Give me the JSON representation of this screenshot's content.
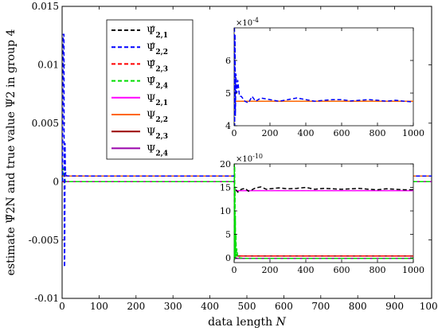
{
  "chart_data": [
    {
      "id": "main",
      "type": "line",
      "title": "",
      "xlabel": "data length",
      "xlabel_italic": "N",
      "ylabel": "estimate Ψ̂2N and true value Ψ2 in group 4",
      "xlim": [
        0,
        1000
      ],
      "ylim": [
        -0.01,
        0.015
      ],
      "xticks": [
        0,
        100,
        200,
        300,
        400,
        500,
        600,
        700,
        800,
        900,
        1000
      ],
      "xtick_labels": [
        "0",
        "100",
        "200",
        "300",
        "400",
        "500",
        "600",
        "700",
        "800",
        "900",
        "1000"
      ],
      "yticks": [
        -0.01,
        -0.005,
        0,
        0.005,
        0.01,
        0.015
      ],
      "ytick_labels": [
        "-0.01",
        "-0.005",
        "0",
        "0.005",
        "0.01",
        "0.015"
      ],
      "grid": false,
      "legend_position": "top-left",
      "series": [
        {
          "name": "Ψ̂2,1",
          "name_base": "Ψ̂",
          "name_sub": "2,1",
          "color": "#000000",
          "dash": "dashed",
          "x": [
            1,
            5,
            10,
            20,
            50,
            100,
            1000
          ],
          "y": [
            0.0,
            0.0,
            0.0,
            0.0,
            0.0,
            0.0,
            0.0
          ]
        },
        {
          "name": "Ψ̂2,2",
          "name_base": "Ψ̂",
          "name_sub": "2,2",
          "color": "#0000ff",
          "dash": "dashed",
          "x": [
            1,
            3,
            5,
            6,
            7,
            8,
            9,
            10,
            12,
            15,
            20,
            50,
            100,
            1000
          ],
          "y": [
            0.0,
            0.0126,
            0.0126,
            -0.0073,
            -0.0073,
            0.0033,
            0.0006,
            0.0008,
            0.0005,
            0.00048,
            0.00048,
            0.00048,
            0.00047,
            0.00047
          ]
        },
        {
          "name": "Ψ̂2,3",
          "name_base": "Ψ̂",
          "name_sub": "2,3",
          "color": "#ff0000",
          "dash": "dashed",
          "x": [
            1,
            5,
            10,
            20,
            50,
            100,
            1000
          ],
          "y": [
            0.0,
            0.0,
            0.0,
            0.0,
            0.0,
            0.0,
            0.0
          ]
        },
        {
          "name": "Ψ̂2,4",
          "name_base": "Ψ̂",
          "name_sub": "2,4",
          "color": "#00dd00",
          "dash": "dashed",
          "x": [
            1,
            2,
            4,
            6,
            8,
            10,
            20,
            50,
            1000
          ],
          "y": [
            0.0,
            0.0012,
            0.0008,
            0.0003,
            0.0001,
            0.0,
            0.0,
            0.0,
            0.0
          ]
        },
        {
          "name": "Ψ2,1",
          "name_base": "Ψ",
          "name_sub": "2,1",
          "color": "#ff00ff",
          "dash": "solid",
          "x": [
            1,
            1000
          ],
          "y": [
            0.0,
            0.0
          ]
        },
        {
          "name": "Ψ2,2",
          "name_base": "Ψ",
          "name_sub": "2,2",
          "color": "#ff6600",
          "dash": "solid",
          "x": [
            1,
            1000
          ],
          "y": [
            0.000475,
            0.000475
          ]
        },
        {
          "name": "Ψ2,3",
          "name_base": "Ψ",
          "name_sub": "2,3",
          "color": "#990000",
          "dash": "solid",
          "x": [
            1,
            1000
          ],
          "y": [
            0.0,
            0.0
          ]
        },
        {
          "name": "Ψ2,4",
          "name_base": "Ψ",
          "name_sub": "2,4",
          "color": "#9900aa",
          "dash": "solid",
          "x": [
            1,
            1000
          ],
          "y": [
            0.0,
            0.0
          ]
        }
      ]
    },
    {
      "id": "inset_top",
      "type": "line",
      "exponent_label": "×10",
      "exponent_power": "-4",
      "multiplier": 0.0001,
      "xlim": [
        0,
        1000
      ],
      "ylim": [
        4,
        7
      ],
      "xticks": [
        0,
        200,
        400,
        600,
        800,
        1000
      ],
      "xtick_labels": [
        "0",
        "200",
        "400",
        "600",
        "800",
        "1000"
      ],
      "yticks": [
        4,
        5,
        6
      ],
      "ytick_labels": [
        "4",
        "5",
        "6"
      ],
      "series": [
        {
          "ref": "Ψ2,2",
          "color": "#ff6600",
          "dash": "solid",
          "x": [
            0,
            1000
          ],
          "y": [
            4.75,
            4.75
          ]
        },
        {
          "ref": "Ψ̂2,2",
          "color": "#0000ff",
          "dash": "dashed",
          "x": [
            2,
            3,
            5,
            7,
            10,
            15,
            20,
            30,
            40,
            60,
            80,
            100,
            120,
            150,
            200,
            250,
            300,
            350,
            400,
            450,
            500,
            550,
            600,
            650,
            700,
            750,
            800,
            850,
            900,
            950,
            1000
          ],
          "y": [
            7.0,
            4.0,
            6.8,
            4.3,
            5.6,
            5.0,
            5.4,
            4.9,
            4.9,
            4.75,
            4.7,
            4.9,
            4.75,
            4.85,
            4.8,
            4.75,
            4.8,
            4.85,
            4.8,
            4.75,
            4.78,
            4.8,
            4.8,
            4.76,
            4.78,
            4.8,
            4.78,
            4.75,
            4.78,
            4.75,
            4.73
          ]
        }
      ]
    },
    {
      "id": "inset_bottom",
      "type": "line",
      "exponent_label": "×10",
      "exponent_power": "-10",
      "multiplier": 1e-10,
      "xlim": [
        0,
        1000
      ],
      "ylim": [
        -1,
        20
      ],
      "xticks": [
        0,
        200,
        400,
        600,
        800,
        1000
      ],
      "xtick_labels": [
        "0",
        "200",
        "400",
        "600",
        "800",
        "1000"
      ],
      "yticks": [
        0,
        5,
        10,
        15,
        20
      ],
      "ytick_labels": [
        "0",
        "5",
        "10",
        "15",
        "20"
      ],
      "series": [
        {
          "ref": "Ψ2,1",
          "color": "#ff00ff",
          "dash": "solid",
          "x": [
            0,
            1000
          ],
          "y": [
            14.3,
            14.3
          ]
        },
        {
          "ref": "Ψ̂2,1",
          "color": "#000000",
          "dash": "dashed",
          "x": [
            10,
            20,
            40,
            60,
            80,
            100,
            120,
            150,
            180,
            200,
            250,
            300,
            350,
            400,
            450,
            500,
            550,
            600,
            650,
            700,
            750,
            800,
            850,
            900,
            950,
            1000
          ],
          "y": [
            14.5,
            14.0,
            14.6,
            14.8,
            14.2,
            14.5,
            14.9,
            15.1,
            14.6,
            14.7,
            14.9,
            14.7,
            14.8,
            15.0,
            14.6,
            14.8,
            14.7,
            14.6,
            14.7,
            14.8,
            14.6,
            14.5,
            14.7,
            14.6,
            14.5,
            14.5
          ]
        },
        {
          "ref": "Ψ2,3",
          "color": "#990000",
          "dash": "solid",
          "x": [
            0,
            1000
          ],
          "y": [
            0.4,
            0.4
          ]
        },
        {
          "ref": "Ψ̂2,3",
          "color": "#ff0000",
          "dash": "dashed",
          "x": [
            0,
            20,
            50,
            100,
            1000
          ],
          "y": [
            0.5,
            0.45,
            0.4,
            0.4,
            0.4
          ]
        },
        {
          "ref": "Ψ2,4",
          "color": "#9900aa",
          "dash": "solid",
          "x": [
            0,
            1000
          ],
          "y": [
            -0.1,
            -0.1
          ]
        },
        {
          "ref": "Ψ̂2,4",
          "color": "#00dd00",
          "dash": "dashed",
          "x": [
            1,
            2,
            3,
            4,
            5,
            6,
            7,
            8,
            10,
            12,
            15,
            20,
            30,
            50,
            1000
          ],
          "y": [
            20,
            -0.5,
            19.5,
            2,
            15,
            0,
            9,
            0.5,
            5,
            0.3,
            2,
            0.1,
            0,
            -0.1,
            -0.1
          ]
        }
      ]
    }
  ]
}
